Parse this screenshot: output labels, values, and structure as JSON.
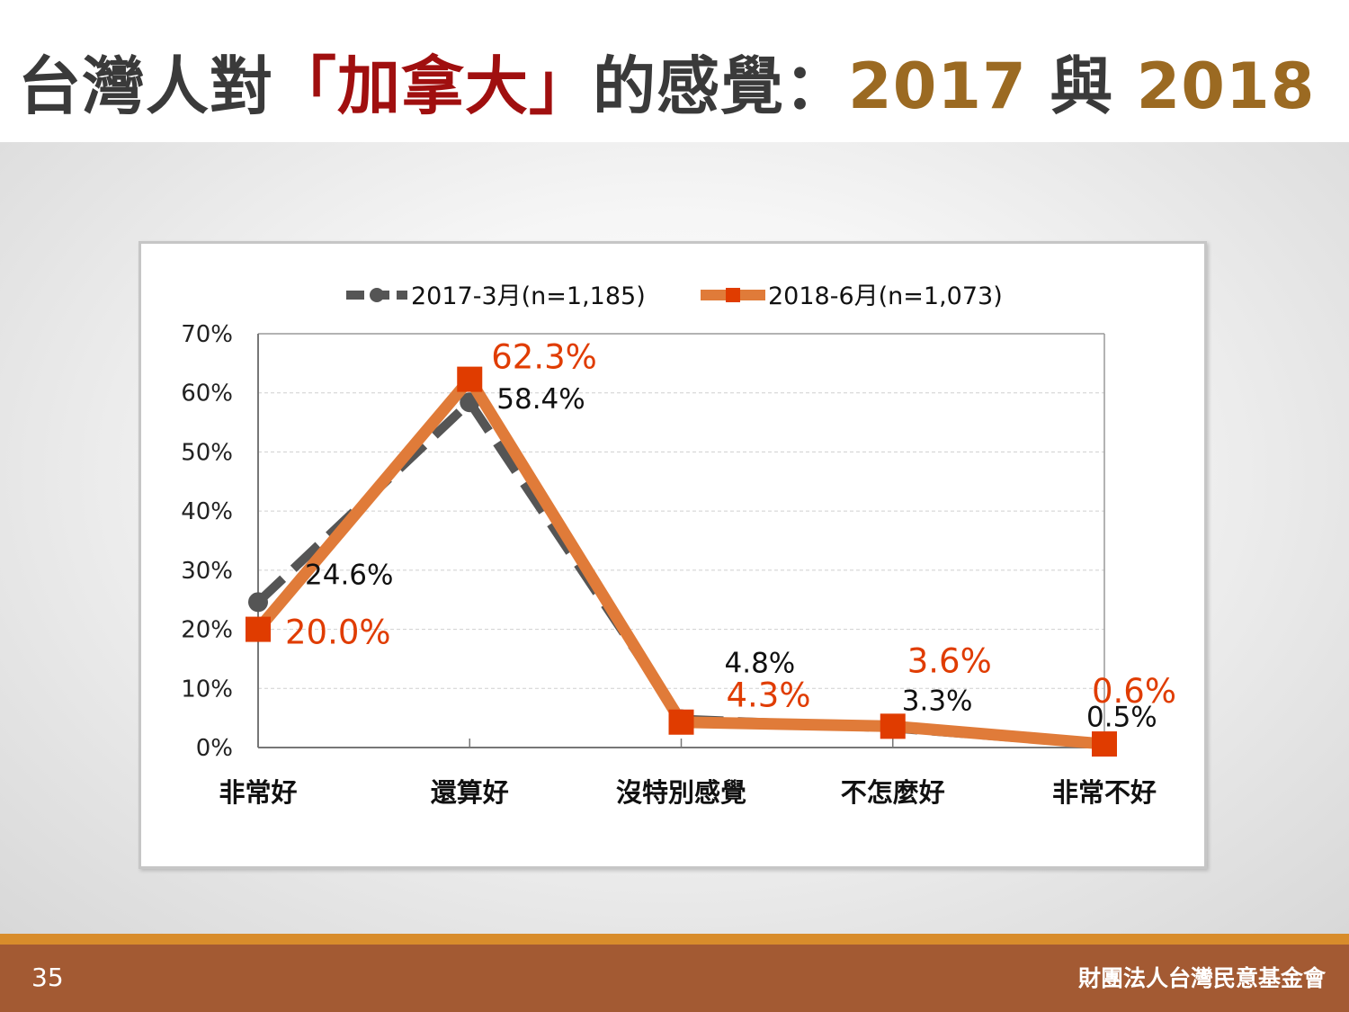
{
  "title": {
    "part1": "台灣人對",
    "highlight": "「加拿大」",
    "part2": "的感覺：",
    "year1": "2017",
    "connector": " 與 ",
    "year2": "2018"
  },
  "colors": {
    "title_text": "#3a3a3a",
    "title_highlight": "#a00f0f",
    "title_years": "#9b6a22",
    "series_2017": "#555555",
    "series_2018_line": "#e07b39",
    "series_2018_marker": "#e03c00",
    "label_2018": "#e03c00",
    "footer": "#a35a33",
    "footer_stripe": "#d88c2b"
  },
  "footer": {
    "page_number": "35",
    "organization": "財團法人台灣民意基金會"
  },
  "chart_data": {
    "type": "line",
    "categories": [
      "非常好",
      "還算好",
      "沒特別感覺",
      "不怎麼好",
      "非常不好"
    ],
    "ylim": [
      0,
      70
    ],
    "y_ticks": [
      "0%",
      "10%",
      "20%",
      "30%",
      "40%",
      "50%",
      "60%",
      "70%"
    ],
    "grid": true,
    "legend_position": "top-center",
    "series": [
      {
        "name": "2017-3月(n=1,185)",
        "values": [
          24.6,
          58.4,
          4.8,
          3.3,
          0.5
        ],
        "labels": [
          "24.6%",
          "58.4%",
          "4.8%",
          "3.3%",
          "0.5%"
        ],
        "style": "dashed",
        "marker": "circle",
        "color": "#555555"
      },
      {
        "name": "2018-6月(n=1,073)",
        "values": [
          20.0,
          62.3,
          4.3,
          3.6,
          0.6
        ],
        "labels": [
          "20.0%",
          "62.3%",
          "4.3%",
          "3.6%",
          "0.6%"
        ],
        "style": "solid",
        "marker": "square",
        "color": "#e07b39"
      }
    ]
  }
}
